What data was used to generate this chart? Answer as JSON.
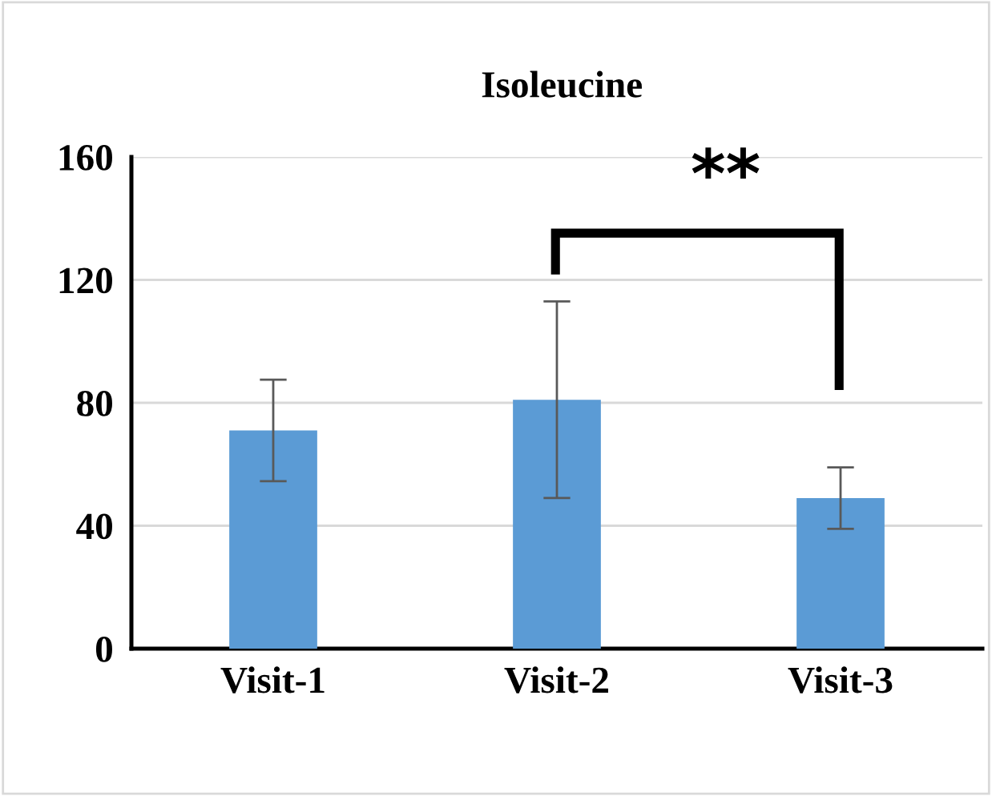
{
  "chart_data": {
    "type": "bar",
    "title": "Isoleucine",
    "categories": [
      "Visit-1",
      "Visit-2",
      "Visit-3"
    ],
    "values": [
      71,
      81,
      49
    ],
    "errors": [
      16.5,
      32,
      10
    ],
    "color": "#5b9bd5",
    "ylim": [
      0,
      160
    ],
    "yticks": [
      0,
      40,
      80,
      120,
      160
    ],
    "grid": "y",
    "legend": false,
    "annotations": [
      "**"
    ]
  }
}
